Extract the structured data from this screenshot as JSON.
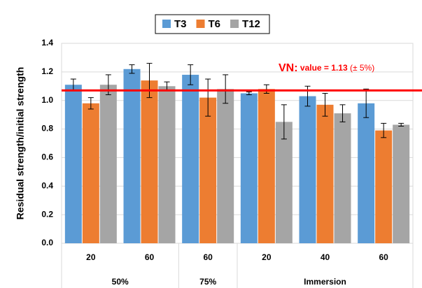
{
  "chart_data": {
    "type": "bar",
    "ylabel": "Residual strength/initial strength",
    "groups": [
      {
        "label": "50%",
        "categories": [
          "20",
          "60"
        ]
      },
      {
        "label": "75%",
        "categories": [
          "60"
        ]
      },
      {
        "label": "Immersion",
        "categories": [
          "20",
          "40",
          "60"
        ]
      }
    ],
    "series": [
      {
        "name": "T3",
        "color": "#5b9bd5",
        "values": [
          1.11,
          1.22,
          1.18,
          1.05,
          1.03,
          0.98
        ],
        "errors": [
          0.04,
          0.03,
          0.07,
          0.01,
          0.07,
          0.1
        ]
      },
      {
        "name": "T6",
        "color": "#ed7d31",
        "values": [
          0.98,
          1.14,
          1.02,
          1.08,
          0.97,
          0.79
        ],
        "errors": [
          0.04,
          0.12,
          0.13,
          0.03,
          0.08,
          0.05
        ]
      },
      {
        "name": "T12",
        "color": "#a5a5a5",
        "values": [
          1.11,
          1.1,
          1.08,
          0.85,
          0.91,
          0.83
        ],
        "errors": [
          0.07,
          0.03,
          0.1,
          0.12,
          0.06,
          0.01
        ]
      }
    ],
    "reference_line": {
      "value": 1.07,
      "color": "#ff0000"
    },
    "annotation": {
      "prefix": "VN:",
      "text": "value = 1.13",
      "suffix": "(± 5%)"
    },
    "ylim": [
      0,
      1.4
    ],
    "yticks": [
      {
        "value": 0,
        "label": "0.0"
      },
      {
        "value": 0.2,
        "label": "0.2"
      },
      {
        "value": 0.4,
        "label": "0.4"
      },
      {
        "value": 0.6,
        "label": "0.6"
      },
      {
        "value": 0.8,
        "label": "0.8"
      },
      {
        "value": 1.0,
        "label": "1.0"
      },
      {
        "value": 1.2,
        "label": "1.2"
      },
      {
        "value": 1.4,
        "label": "1.4"
      }
    ],
    "grid": true,
    "legend": "top"
  }
}
